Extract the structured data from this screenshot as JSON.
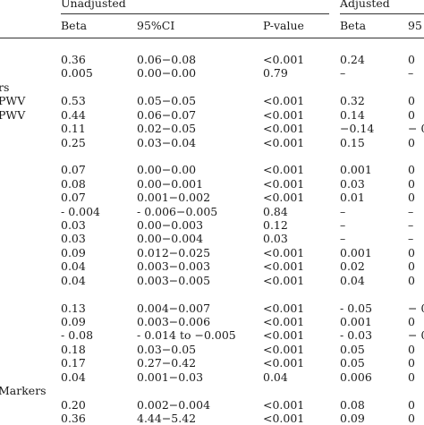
{
  "header": {
    "group_unadjusted": "Unadjusted",
    "group_adjusted": "Adjusted",
    "col_beta": "Beta",
    "col_ci": "95%CI",
    "col_pvalue": "P-value",
    "col_beta_adj": "Beta",
    "col_ci_adj": "95"
  },
  "rows": [
    {
      "label": "",
      "beta": "0.36",
      "ci": "0.06−0.08",
      "p": "<0.001",
      "beta_adj": "0.24",
      "ci_adj": "0"
    },
    {
      "label": "",
      "beta": "0.005",
      "ci": "0.00−0.00",
      "p": "0.79",
      "beta_adj": "–",
      "ci_adj": "–"
    },
    {
      "label": "rs",
      "beta": "",
      "ci": "",
      "p": "",
      "beta_adj": "",
      "ci_adj": ""
    },
    {
      "label": "PWV",
      "beta": "0.53",
      "ci": "0.05−0.05",
      "p": "<0.001",
      "beta_adj": "0.32",
      "ci_adj": "0"
    },
    {
      "label": "PWV",
      "beta": "0.44",
      "ci": "0.06−0.07",
      "p": "<0.001",
      "beta_adj": "0.14",
      "ci_adj": "0"
    },
    {
      "label": "",
      "beta": "0.11",
      "ci": "0.02−0.05",
      "p": "<0.001",
      "beta_adj": "−0.14",
      "ci_adj": "− 0"
    },
    {
      "label": "",
      "beta": "0.25",
      "ci": "0.03−0.04",
      "p": "<0.001",
      "beta_adj": "0.15",
      "ci_adj": "0"
    },
    {
      "label": "",
      "beta": "",
      "ci": "",
      "p": "",
      "beta_adj": "",
      "ci_adj": ""
    },
    {
      "label": "",
      "beta": "0.07",
      "ci": "0.00−0.00",
      "p": "<0.001",
      "beta_adj": "0.001",
      "ci_adj": "0"
    },
    {
      "label": "",
      "beta": "0.08",
      "ci": "0.00−0.001",
      "p": "<0.001",
      "beta_adj": "0.03",
      "ci_adj": "0"
    },
    {
      "label": "",
      "beta": "0.07",
      "ci": "0.001−0.002",
      "p": "<0.001",
      "beta_adj": "0.01",
      "ci_adj": "0"
    },
    {
      "label": "",
      "beta": "- 0.004",
      "ci": "- 0.006−0.005",
      "p": "0.84",
      "beta_adj": "–",
      "ci_adj": "–"
    },
    {
      "label": "",
      "beta": "0.03",
      "ci": "0.00−0.003",
      "p": "0.12",
      "beta_adj": "–",
      "ci_adj": "–"
    },
    {
      "label": "",
      "beta": "0.03",
      "ci": "0.00−0.004",
      "p": "0.03",
      "beta_adj": "–",
      "ci_adj": "–"
    },
    {
      "label": "",
      "beta": "0.09",
      "ci": "0.012−0.025",
      "p": "<0.001",
      "beta_adj": "0.001",
      "ci_adj": "0"
    },
    {
      "label": "",
      "beta": "0.04",
      "ci": "0.003−0.003",
      "p": "<0.001",
      "beta_adj": "0.02",
      "ci_adj": "0"
    },
    {
      "label": "",
      "beta": "0.04",
      "ci": "0.003−0.005",
      "p": "<0.001",
      "beta_adj": "0.04",
      "ci_adj": "0"
    },
    {
      "label": "",
      "beta": "",
      "ci": "",
      "p": "",
      "beta_adj": "",
      "ci_adj": ""
    },
    {
      "label": "",
      "beta": "0.13",
      "ci": "0.004−0.007",
      "p": "<0.001",
      "beta_adj": "- 0.05",
      "ci_adj": "− 0"
    },
    {
      "label": "",
      "beta": "0.09",
      "ci": "0.003−0.006",
      "p": "<0.001",
      "beta_adj": "0.001",
      "ci_adj": "0"
    },
    {
      "label": "",
      "beta": "- 0.08",
      "ci": "- 0.014 to −0.005",
      "p": "<0.001",
      "beta_adj": "- 0.03",
      "ci_adj": "− 0"
    },
    {
      "label": "",
      "beta": "0.18",
      "ci": "0.03−0.05",
      "p": "<0.001",
      "beta_adj": "0.05",
      "ci_adj": "0"
    },
    {
      "label": "",
      "beta": "0.17",
      "ci": "0.27−0.42",
      "p": "<0.001",
      "beta_adj": "0.05",
      "ci_adj": "0"
    },
    {
      "label": "",
      "beta": "0.04",
      "ci": "0.001−0.03",
      "p": "0.04",
      "beta_adj": "0.006",
      "ci_adj": "0"
    },
    {
      "label": "Markers",
      "beta": "",
      "ci": "",
      "p": "",
      "beta_adj": "",
      "ci_adj": ""
    },
    {
      "label": "",
      "beta": "0.20",
      "ci": "0.002−0.004",
      "p": "<0.001",
      "beta_adj": "0.08",
      "ci_adj": "0"
    },
    {
      "label": "",
      "beta": "0.36",
      "ci": "4.44−5.42",
      "p": "<0.001",
      "beta_adj": "0.09",
      "ci_adj": "0"
    }
  ]
}
